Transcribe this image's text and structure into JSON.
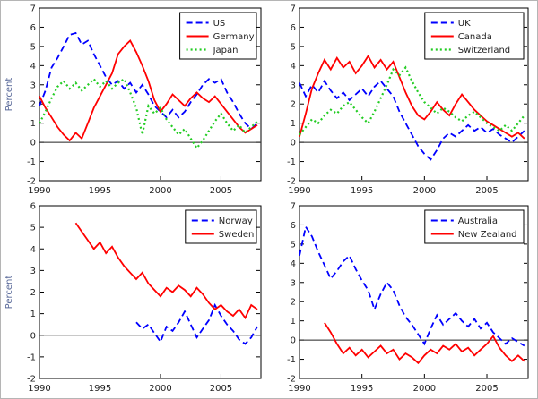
{
  "figure": {
    "background": "#ffffff",
    "axis_color": "#000000",
    "tick_label_color": "#222222",
    "ylabel_color": "#5a6a9a"
  },
  "chart_data": [
    {
      "type": "line",
      "position": "top-left",
      "title": "",
      "xlabel": "",
      "ylabel": "Percent",
      "xlim": [
        1990,
        2008.3
      ],
      "ylim": [
        -2,
        7
      ],
      "xticks": [
        1990,
        1995,
        2000,
        2005
      ],
      "yticks": [
        -2,
        -1,
        0,
        1,
        2,
        3,
        4,
        5,
        6,
        7
      ],
      "zero_line": true,
      "grid": false,
      "legend_position": "top-right",
      "series": [
        {
          "name": "US",
          "color": "#0000FF",
          "style": "dashed",
          "x_start": 1990,
          "x_step": 0.5,
          "values": [
            1.9,
            2.7,
            3.9,
            4.4,
            5.0,
            5.6,
            5.7,
            5.1,
            5.3,
            4.6,
            4.0,
            3.4,
            3.0,
            3.2,
            2.8,
            3.1,
            2.6,
            3.0,
            2.5,
            1.9,
            1.6,
            1.3,
            1.7,
            1.3,
            1.6,
            2.1,
            2.5,
            3.0,
            3.3,
            3.1,
            3.3,
            2.6,
            2.1,
            1.5,
            1.0,
            0.7,
            1.0
          ]
        },
        {
          "name": "Germany",
          "color": "#FF0000",
          "style": "solid",
          "x_start": 1990,
          "x_step": 0.5,
          "values": [
            2.4,
            1.8,
            1.3,
            0.8,
            0.4,
            0.1,
            0.5,
            0.2,
            1.0,
            1.8,
            2.4,
            3.0,
            3.6,
            4.6,
            5.0,
            5.3,
            4.7,
            4.0,
            3.2,
            2.2,
            1.6,
            2.0,
            2.5,
            2.2,
            1.9,
            2.3,
            2.6,
            2.3,
            2.1,
            2.4,
            2.0,
            1.6,
            1.2,
            0.8,
            0.5,
            0.7,
            0.9
          ]
        },
        {
          "name": "Japan",
          "color": "#22CC22",
          "style": "dotted",
          "x_start": 1990,
          "x_step": 0.5,
          "values": [
            1.0,
            1.6,
            2.3,
            2.9,
            3.2,
            2.8,
            3.1,
            2.7,
            3.0,
            3.3,
            2.9,
            3.2,
            2.8,
            3.1,
            3.3,
            2.6,
            1.8,
            0.4,
            1.9,
            1.5,
            1.8,
            1.2,
            0.8,
            0.4,
            0.7,
            0.2,
            -0.3,
            0.1,
            0.6,
            1.1,
            1.5,
            1.0,
            0.6,
            0.9,
            0.5,
            0.8,
            1.1
          ]
        }
      ]
    },
    {
      "type": "line",
      "position": "top-right",
      "title": "",
      "xlabel": "",
      "ylabel": "",
      "xlim": [
        1990,
        2008.3
      ],
      "ylim": [
        -2,
        7
      ],
      "xticks": [
        1990,
        1995,
        2000,
        2005
      ],
      "yticks": [
        -2,
        -1,
        0,
        1,
        2,
        3,
        4,
        5,
        6,
        7
      ],
      "zero_line": true,
      "grid": false,
      "legend_position": "top-right",
      "series": [
        {
          "name": "UK",
          "color": "#0000FF",
          "style": "dashed",
          "x_start": 1990,
          "x_step": 0.5,
          "values": [
            3.1,
            2.4,
            3.0,
            2.6,
            3.2,
            2.7,
            2.3,
            2.6,
            2.2,
            2.5,
            2.8,
            2.4,
            2.9,
            3.2,
            2.8,
            2.4,
            1.6,
            1.0,
            0.4,
            -0.2,
            -0.6,
            -0.9,
            -0.4,
            0.2,
            0.5,
            0.3,
            0.6,
            0.9,
            0.6,
            0.8,
            0.5,
            0.7,
            0.4,
            0.2,
            0.0,
            0.3,
            0.6
          ]
        },
        {
          "name": "Canada",
          "color": "#FF0000",
          "style": "solid",
          "x_start": 1990,
          "x_step": 0.5,
          "values": [
            0.3,
            1.5,
            2.8,
            3.6,
            4.3,
            3.8,
            4.4,
            3.9,
            4.2,
            3.6,
            4.0,
            4.5,
            3.9,
            4.3,
            3.8,
            4.2,
            3.4,
            2.6,
            1.9,
            1.4,
            1.2,
            1.6,
            2.1,
            1.7,
            1.4,
            2.0,
            2.5,
            2.1,
            1.7,
            1.4,
            1.1,
            0.9,
            0.7,
            0.5,
            0.3,
            0.5,
            0.2
          ]
        },
        {
          "name": "Switzerland",
          "color": "#22CC22",
          "style": "dotted",
          "x_start": 1990,
          "x_step": 0.5,
          "values": [
            0.4,
            0.8,
            1.2,
            1.0,
            1.4,
            1.7,
            1.5,
            1.9,
            2.1,
            1.7,
            1.3,
            1.0,
            1.6,
            2.3,
            3.0,
            3.8,
            3.5,
            3.9,
            3.2,
            2.6,
            2.1,
            1.8,
            1.5,
            1.8,
            1.6,
            1.3,
            1.1,
            1.4,
            1.6,
            1.3,
            1.0,
            0.8,
            0.6,
            0.9,
            0.6,
            1.0,
            1.4
          ]
        }
      ]
    },
    {
      "type": "line",
      "position": "bottom-left",
      "title": "",
      "xlabel": "",
      "ylabel": "Percent",
      "xlim": [
        1990,
        2008.3
      ],
      "ylim": [
        -2,
        6
      ],
      "xticks": [
        1990,
        1995,
        2000,
        2005
      ],
      "yticks": [
        -2,
        -1,
        0,
        1,
        2,
        3,
        4,
        5,
        6
      ],
      "zero_line": true,
      "grid": false,
      "legend_position": "top-right",
      "series": [
        {
          "name": "Norway",
          "color": "#0000FF",
          "style": "dashed",
          "x_start": 1998,
          "x_step": 0.5,
          "values": [
            0.6,
            0.3,
            0.5,
            0.1,
            -0.3,
            0.4,
            0.2,
            0.6,
            1.1,
            0.5,
            -0.1,
            0.3,
            0.7,
            1.4,
            0.9,
            0.5,
            0.2,
            -0.2,
            -0.4,
            -0.1,
            0.4
          ]
        },
        {
          "name": "Sweden",
          "color": "#FF0000",
          "style": "solid",
          "x_start": 1993,
          "x_step": 0.5,
          "values": [
            5.2,
            4.8,
            4.4,
            4.0,
            4.3,
            3.8,
            4.1,
            3.6,
            3.2,
            2.9,
            2.6,
            2.9,
            2.4,
            2.1,
            1.8,
            2.2,
            2.0,
            2.3,
            2.1,
            1.8,
            2.2,
            1.9,
            1.5,
            1.2,
            1.4,
            1.1,
            0.9,
            1.2,
            0.8,
            1.4,
            1.2
          ]
        }
      ]
    },
    {
      "type": "line",
      "position": "bottom-right",
      "title": "",
      "xlabel": "",
      "ylabel": "",
      "xlim": [
        1990,
        2008.3
      ],
      "ylim": [
        -2,
        7
      ],
      "xticks": [
        1990,
        1995,
        2000,
        2005
      ],
      "yticks": [
        -2,
        -1,
        0,
        1,
        2,
        3,
        4,
        5,
        6,
        7
      ],
      "zero_line": true,
      "grid": false,
      "legend_position": "top-right",
      "series": [
        {
          "name": "Australia",
          "color": "#0000FF",
          "style": "dashed",
          "x_start": 1990,
          "x_step": 0.5,
          "values": [
            4.4,
            5.9,
            5.4,
            4.6,
            3.9,
            3.2,
            3.6,
            4.1,
            4.4,
            3.7,
            3.1,
            2.6,
            1.6,
            2.4,
            3.0,
            2.6,
            1.8,
            1.2,
            0.8,
            0.3,
            -0.2,
            0.6,
            1.3,
            0.8,
            1.1,
            1.4,
            1.0,
            0.7,
            1.1,
            0.6,
            0.9,
            0.4,
            0.1,
            -0.2,
            0.1,
            -0.1,
            -0.3
          ]
        },
        {
          "name": "New Zealand",
          "color": "#FF0000",
          "style": "solid",
          "x_start": 1992,
          "x_step": 0.5,
          "values": [
            0.9,
            0.4,
            -0.2,
            -0.7,
            -0.4,
            -0.8,
            -0.5,
            -0.9,
            -0.6,
            -0.3,
            -0.7,
            -0.5,
            -1.0,
            -0.7,
            -0.9,
            -1.2,
            -0.8,
            -0.5,
            -0.7,
            -0.3,
            -0.5,
            -0.2,
            -0.6,
            -0.4,
            -0.8,
            -0.5,
            -0.2,
            0.2,
            -0.4,
            -0.8,
            -1.1,
            -0.8,
            -1.1
          ]
        }
      ]
    }
  ]
}
